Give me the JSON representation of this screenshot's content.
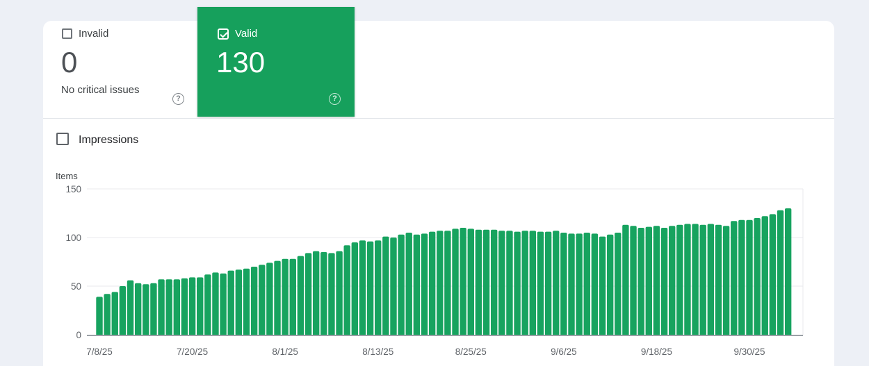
{
  "summary": {
    "invalid": {
      "label": "Invalid",
      "checkbox_checked": false,
      "count": "0",
      "subtext": "No critical issues",
      "help_glyph": "?"
    },
    "valid": {
      "label": "Valid",
      "checkbox_checked": true,
      "count": "130",
      "help_glyph": "?"
    }
  },
  "toggles": {
    "impressions": {
      "label": "Impressions",
      "checked": false
    }
  },
  "colors": {
    "background": "#edf0f6",
    "accent_green": "#16a05c",
    "bar_green": "#17a35f",
    "gridline": "#e8eaed",
    "baseline": "#9aa0a6",
    "axis_text": "#5f6368"
  },
  "chart_data": {
    "type": "bar",
    "title": "",
    "ylabel": "Items",
    "xlabel": "",
    "ylim": [
      0,
      150
    ],
    "yticks": [
      0,
      50,
      100,
      150
    ],
    "grid": "horizontal",
    "legend": "none",
    "bar_color": "#17a35f",
    "xtick_labels": [
      "7/8/25",
      "7/20/25",
      "8/1/25",
      "8/13/25",
      "8/25/25",
      "9/6/25",
      "9/18/25",
      "9/30/25"
    ],
    "xtick_interval_bars": 12,
    "values": [
      39,
      42,
      44,
      50,
      56,
      53,
      52,
      53,
      57,
      57,
      57,
      58,
      59,
      59,
      62,
      64,
      63,
      66,
      67,
      68,
      70,
      72,
      74,
      76,
      78,
      78,
      81,
      84,
      86,
      85,
      84,
      86,
      92,
      95,
      97,
      96,
      97,
      101,
      100,
      103,
      105,
      103,
      104,
      106,
      107,
      107,
      109,
      110,
      109,
      108,
      108,
      108,
      107,
      107,
      106,
      107,
      107,
      106,
      106,
      107,
      105,
      104,
      104,
      105,
      104,
      101,
      103,
      105,
      113,
      112,
      110,
      111,
      112,
      110,
      112,
      113,
      114,
      114,
      113,
      114,
      113,
      112,
      117,
      118,
      118,
      120,
      122,
      124,
      128,
      130
    ]
  }
}
